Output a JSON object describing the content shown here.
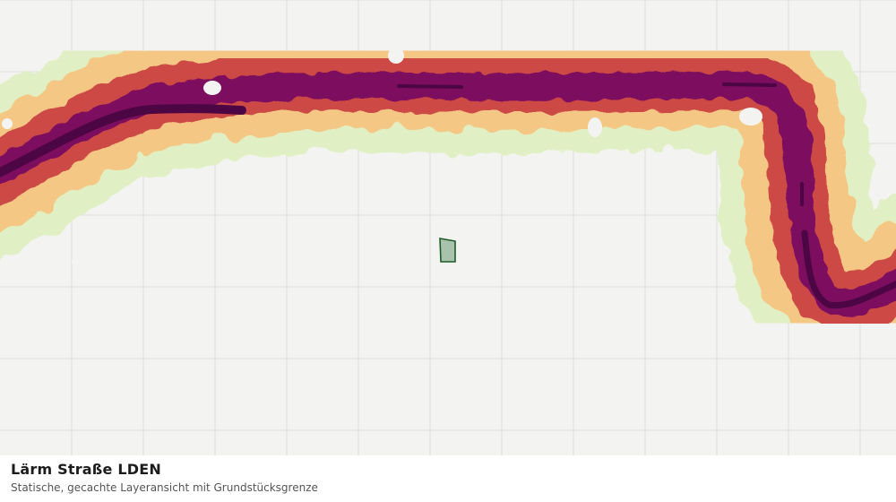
{
  "layer": {
    "title": "Lärm Straße LDEN",
    "subtitle": "Statische, gecachte Layeransicht mit Grundstücksgrenze"
  },
  "map": {
    "background_color": "#f3f4f2",
    "grid_color": "#dcdedb",
    "noise_band_colors": [
      "#e1f0c4",
      "#f4c784",
      "#cc4a45",
      "#7c0c5e",
      "#4b0643"
    ],
    "parcel": {
      "fill": "#a8c2ab",
      "stroke": "#1e5a2c"
    }
  }
}
